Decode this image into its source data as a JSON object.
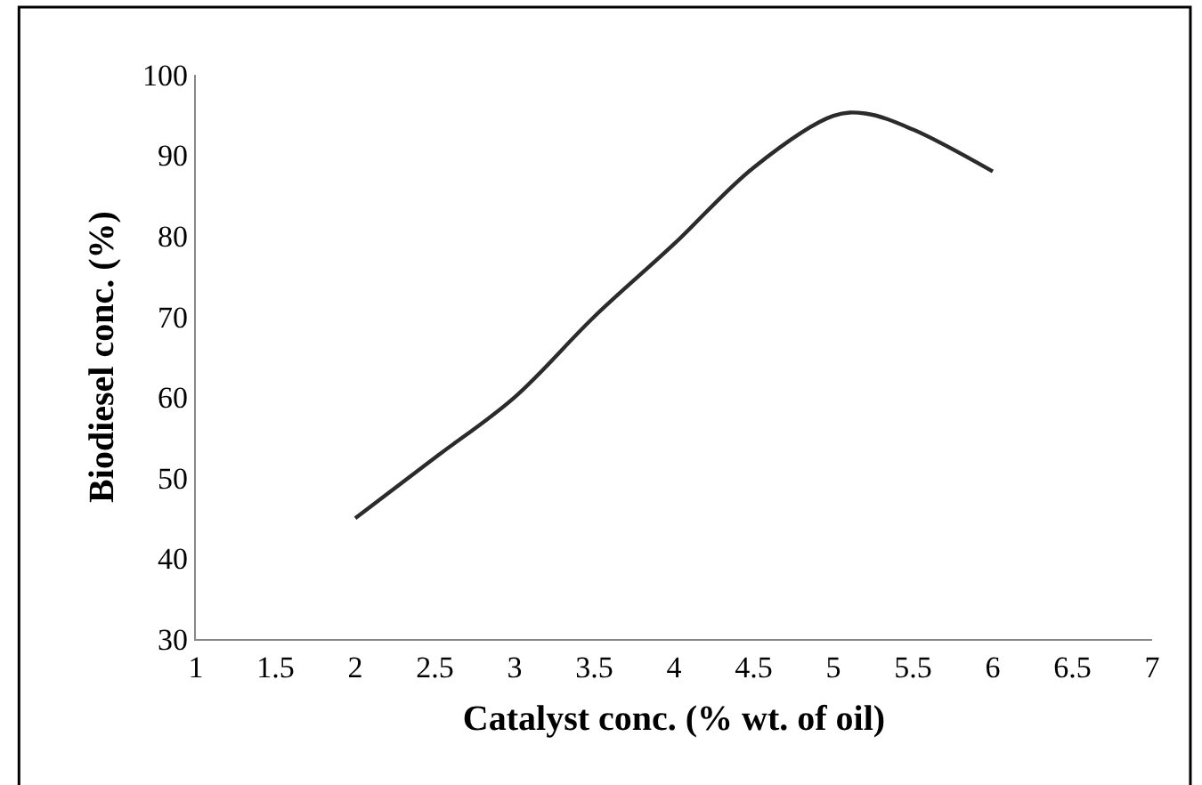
{
  "chart_data": {
    "type": "line",
    "xlabel": "Catalyst conc. (% wt. of oil)",
    "ylabel": "Biodiesel conc. (%)",
    "x": [
      2,
      2.5,
      3,
      3.5,
      4,
      4.5,
      5,
      5.2,
      5.5,
      6
    ],
    "series": [
      {
        "color": "#2b2b2b",
        "values": [
          45,
          52.5,
          60,
          70,
          79,
          88.5,
          94.9,
          95.2,
          93.2,
          88
        ]
      }
    ],
    "xlim": [
      1,
      7
    ],
    "xticks": [
      1,
      1.5,
      2,
      2.5,
      3,
      3.5,
      4,
      4.5,
      5,
      5.5,
      6,
      6.5,
      7
    ],
    "ylim": [
      30,
      100
    ],
    "yticks": [
      30,
      40,
      50,
      60,
      70,
      80,
      90,
      100
    ],
    "grid": false,
    "marker": "none",
    "line_style": "solid"
  }
}
